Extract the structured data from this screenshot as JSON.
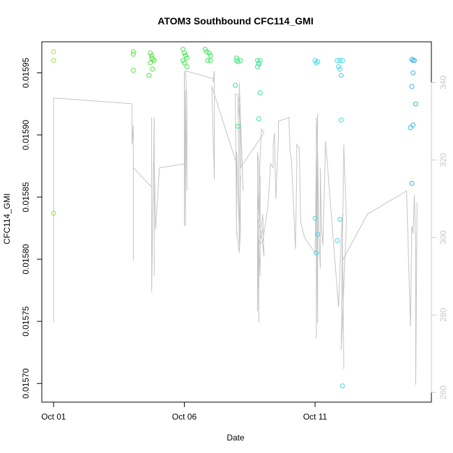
{
  "chart_data": {
    "type": "scatter",
    "title": "ATOM3 Southbound CFC114_GMI",
    "xlabel": "Date",
    "ylabel": "CFC114_GMI",
    "x_unit": "days since Oct 01",
    "x_ticks": [
      {
        "value": 0,
        "label": "Oct 01"
      },
      {
        "value": 5,
        "label": "Oct 06"
      },
      {
        "value": 10,
        "label": "Oct 11"
      }
    ],
    "xlim": [
      -0.45,
      14.45
    ],
    "y_ticks": [
      0.0157,
      0.01575,
      0.0158,
      0.01585,
      0.0159,
      0.01595
    ],
    "y_tick_labels": [
      "0.01570",
      "0.01575",
      "0.01580",
      "0.01585",
      "0.01590",
      "0.01595"
    ],
    "ylim": [
      0.015685,
      0.015975
    ],
    "y2_ticks": [
      260,
      280,
      300,
      320,
      340
    ],
    "y2_tick_labels": [
      "260",
      "280",
      "300",
      "320",
      "340"
    ],
    "y2lim": [
      257.5,
      350.5
    ],
    "grid": false,
    "points": [
      {
        "x": 0.0,
        "y": 0.015967,
        "color": "#9be23a"
      },
      {
        "x": 0.0,
        "y": 0.01596,
        "color": "#9be23a"
      },
      {
        "x": 0.0,
        "y": 0.015837,
        "color": "#9be23a"
      },
      {
        "x": 3.05,
        "y": 0.015967,
        "color": "#5ae63a"
      },
      {
        "x": 3.05,
        "y": 0.015965,
        "color": "#5ae63a"
      },
      {
        "x": 3.05,
        "y": 0.015952,
        "color": "#5ae63a"
      },
      {
        "x": 3.7,
        "y": 0.015966,
        "color": "#4ee63a"
      },
      {
        "x": 3.75,
        "y": 0.015964,
        "color": "#4ee63a"
      },
      {
        "x": 3.75,
        "y": 0.015962,
        "color": "#4ee63a"
      },
      {
        "x": 3.8,
        "y": 0.015961,
        "color": "#4ee63a"
      },
      {
        "x": 3.7,
        "y": 0.015958,
        "color": "#4ee63a"
      },
      {
        "x": 3.85,
        "y": 0.01596,
        "color": "#4ee63a"
      },
      {
        "x": 3.78,
        "y": 0.015953,
        "color": "#4ee63a"
      },
      {
        "x": 3.65,
        "y": 0.015948,
        "color": "#4ee63a"
      },
      {
        "x": 4.95,
        "y": 0.015969,
        "color": "#3ae64a"
      },
      {
        "x": 5.0,
        "y": 0.015966,
        "color": "#3ae64a"
      },
      {
        "x": 5.05,
        "y": 0.015964,
        "color": "#3ae64a"
      },
      {
        "x": 5.1,
        "y": 0.015962,
        "color": "#3ae64a"
      },
      {
        "x": 4.95,
        "y": 0.01596,
        "color": "#3ae64a"
      },
      {
        "x": 5.0,
        "y": 0.015958,
        "color": "#3ae64a"
      },
      {
        "x": 5.1,
        "y": 0.015955,
        "color": "#3ae64a"
      },
      {
        "x": 5.8,
        "y": 0.015969,
        "color": "#3ae65a"
      },
      {
        "x": 5.85,
        "y": 0.015967,
        "color": "#3ae65a"
      },
      {
        "x": 5.95,
        "y": 0.015966,
        "color": "#3ae65a"
      },
      {
        "x": 6.0,
        "y": 0.015964,
        "color": "#3ae65a"
      },
      {
        "x": 5.9,
        "y": 0.01596,
        "color": "#3ae65a"
      },
      {
        "x": 6.0,
        "y": 0.01596,
        "color": "#3ae65a"
      },
      {
        "x": 7.0,
        "y": 0.015962,
        "color": "#3ae67a"
      },
      {
        "x": 7.0,
        "y": 0.01596,
        "color": "#3ae67a"
      },
      {
        "x": 7.05,
        "y": 0.015959,
        "color": "#3ae67a"
      },
      {
        "x": 7.15,
        "y": 0.01596,
        "color": "#3ae67a"
      },
      {
        "x": 6.95,
        "y": 0.01594,
        "color": "#3ae67a"
      },
      {
        "x": 7.05,
        "y": 0.015907,
        "color": "#3ae67a"
      },
      {
        "x": 7.8,
        "y": 0.01596,
        "color": "#3ae690"
      },
      {
        "x": 7.85,
        "y": 0.015958,
        "color": "#3ae690"
      },
      {
        "x": 7.8,
        "y": 0.015955,
        "color": "#3ae690"
      },
      {
        "x": 7.9,
        "y": 0.01596,
        "color": "#3ae690"
      },
      {
        "x": 7.85,
        "y": 0.015957,
        "color": "#3ae690"
      },
      {
        "x": 7.9,
        "y": 0.015934,
        "color": "#3ae690"
      },
      {
        "x": 7.85,
        "y": 0.015913,
        "color": "#3ae690"
      },
      {
        "x": 10.0,
        "y": 0.01596,
        "color": "#3ad8e6"
      },
      {
        "x": 10.05,
        "y": 0.015958,
        "color": "#3ad8e6"
      },
      {
        "x": 10.1,
        "y": 0.015959,
        "color": "#3ad8e6"
      },
      {
        "x": 10.0,
        "y": 0.015833,
        "color": "#3ad8e6"
      },
      {
        "x": 10.1,
        "y": 0.01582,
        "color": "#3ad8e6"
      },
      {
        "x": 10.05,
        "y": 0.015805,
        "color": "#3ad8e6"
      },
      {
        "x": 10.85,
        "y": 0.01596,
        "color": "#3ad8e6"
      },
      {
        "x": 10.95,
        "y": 0.01596,
        "color": "#3ad8e6"
      },
      {
        "x": 11.05,
        "y": 0.01596,
        "color": "#3ad8e6"
      },
      {
        "x": 10.9,
        "y": 0.015955,
        "color": "#3ad8e6"
      },
      {
        "x": 10.95,
        "y": 0.015953,
        "color": "#3ad8e6"
      },
      {
        "x": 11.0,
        "y": 0.015948,
        "color": "#3ad8e6"
      },
      {
        "x": 11.0,
        "y": 0.015912,
        "color": "#3ad8e6"
      },
      {
        "x": 10.95,
        "y": 0.015832,
        "color": "#3ad8e6"
      },
      {
        "x": 10.85,
        "y": 0.015815,
        "color": "#3ad8e6"
      },
      {
        "x": 11.05,
        "y": 0.015698,
        "color": "#3ad8e6"
      },
      {
        "x": 13.7,
        "y": 0.015961,
        "color": "#3ab0e6"
      },
      {
        "x": 13.75,
        "y": 0.01596,
        "color": "#3ab0e6"
      },
      {
        "x": 13.8,
        "y": 0.01596,
        "color": "#3ab0e6"
      },
      {
        "x": 13.75,
        "y": 0.01595,
        "color": "#3ab0e6"
      },
      {
        "x": 13.7,
        "y": 0.015939,
        "color": "#3ab0e6"
      },
      {
        "x": 13.85,
        "y": 0.015925,
        "color": "#3ab0e6"
      },
      {
        "x": 13.75,
        "y": 0.015908,
        "color": "#3ab0e6"
      },
      {
        "x": 13.65,
        "y": 0.015906,
        "color": "#3ab0e6"
      },
      {
        "x": 13.7,
        "y": 0.015861,
        "color": "#3ab0e6"
      }
    ],
    "altitude_trace": [
      [
        0.0,
        278
      ],
      [
        0.0,
        336
      ],
      [
        3.0,
        334.5
      ],
      [
        3.0,
        324
      ],
      [
        3.05,
        329
      ],
      [
        3.05,
        294
      ],
      [
        3.05,
        318
      ],
      [
        3.75,
        313
      ],
      [
        3.75,
        305
      ],
      [
        3.75,
        331
      ],
      [
        3.75,
        286
      ],
      [
        3.85,
        331
      ],
      [
        3.85,
        290
      ],
      [
        3.85,
        313
      ],
      [
        3.85,
        295
      ],
      [
        3.85,
        320
      ],
      [
        3.9,
        302
      ],
      [
        4.05,
        318
      ],
      [
        5.0,
        319
      ],
      [
        5.0,
        303
      ],
      [
        5.0,
        343
      ],
      [
        5.05,
        303
      ],
      [
        5.05,
        338
      ],
      [
        5.1,
        312
      ],
      [
        5.1,
        335
      ],
      [
        5.05,
        343
      ],
      [
        6.1,
        341
      ],
      [
        6.1,
        340
      ],
      [
        6.15,
        343
      ],
      [
        6.15,
        334
      ],
      [
        6.15,
        315
      ],
      [
        6.05,
        339
      ],
      [
        7.0,
        319
      ],
      [
        7.0,
        301
      ],
      [
        7.0,
        322
      ],
      [
        7.1,
        302
      ],
      [
        7.1,
        298
      ],
      [
        7.15,
        316
      ],
      [
        7.1,
        300
      ],
      [
        7.05,
        337
      ],
      [
        6.95,
        337
      ],
      [
        7.0,
        302
      ],
      [
        7.1,
        296
      ],
      [
        7.15,
        302
      ],
      [
        7.1,
        340
      ],
      [
        7.25,
        312
      ],
      [
        7.15,
        328
      ],
      [
        7.05,
        335
      ],
      [
        7.1,
        336
      ],
      [
        7.15,
        318
      ],
      [
        8.05,
        327
      ],
      [
        7.95,
        328
      ],
      [
        7.8,
        305
      ],
      [
        7.95,
        301
      ],
      [
        8.05,
        295
      ],
      [
        8.0,
        306
      ],
      [
        7.95,
        303
      ],
      [
        8.0,
        302
      ],
      [
        7.8,
        297
      ],
      [
        7.8,
        281
      ],
      [
        7.8,
        308
      ],
      [
        7.85,
        278
      ],
      [
        7.85,
        312
      ],
      [
        7.85,
        319
      ],
      [
        7.8,
        322
      ],
      [
        7.8,
        286
      ],
      [
        7.9,
        316
      ],
      [
        7.9,
        290
      ],
      [
        7.85,
        298
      ],
      [
        8.0,
        299
      ],
      [
        8.2,
        308
      ],
      [
        8.3,
        319
      ],
      [
        8.4,
        318
      ],
      [
        8.4,
        324
      ],
      [
        8.45,
        327
      ],
      [
        8.5,
        310
      ],
      [
        8.6,
        326
      ],
      [
        8.6,
        330
      ],
      [
        9.0,
        331
      ],
      [
        9.05,
        322
      ],
      [
        9.1,
        320
      ],
      [
        9.2,
        305
      ],
      [
        9.25,
        297
      ],
      [
        9.3,
        317
      ],
      [
        9.3,
        324
      ],
      [
        9.4,
        323
      ],
      [
        9.45,
        304
      ],
      [
        9.6,
        300
      ],
      [
        10.0,
        296
      ],
      [
        10.05,
        322
      ],
      [
        10.1,
        332
      ],
      [
        10.05,
        274
      ],
      [
        10.05,
        331
      ],
      [
        10.1,
        278
      ],
      [
        10.1,
        322
      ],
      [
        10.15,
        300
      ],
      [
        10.2,
        292
      ],
      [
        10.2,
        318
      ],
      [
        10.25,
        302
      ],
      [
        10.3,
        298
      ],
      [
        10.4,
        325
      ],
      [
        10.9,
        282
      ],
      [
        11.0,
        300
      ],
      [
        11.05,
        306
      ],
      [
        11.05,
        299
      ],
      [
        11.1,
        324
      ],
      [
        11.2,
        304
      ],
      [
        11.0,
        271
      ],
      [
        11.05,
        301
      ],
      [
        11.1,
        266
      ],
      [
        11.05,
        294
      ],
      [
        12.0,
        306
      ],
      [
        13.5,
        312
      ],
      [
        13.65,
        277
      ],
      [
        13.7,
        303
      ],
      [
        13.75,
        301
      ],
      [
        13.8,
        311
      ],
      [
        13.85,
        297
      ],
      [
        13.85,
        262
      ],
      [
        13.9,
        309
      ]
    ]
  }
}
